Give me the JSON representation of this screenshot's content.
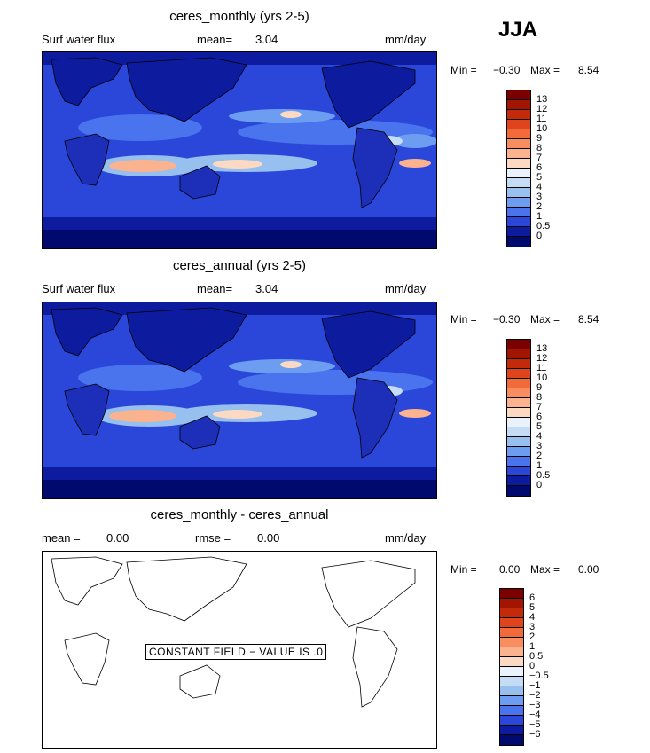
{
  "season": "JJA",
  "panels": [
    {
      "title": "ceres_monthly (yrs 2-5)",
      "left_label": "Surf water flux",
      "stat1_label": "mean=",
      "stat1_value": "3.04",
      "units": "mm/day",
      "min_label": "Min =",
      "min_value": "−0.30",
      "max_label": "Max =",
      "max_value": "8.54",
      "colorbar_ticks": [
        "13",
        "12",
        "11",
        "10",
        "9",
        "8",
        "7",
        "6",
        "5",
        "4",
        "3",
        "2",
        "1",
        "0.5",
        "0"
      ]
    },
    {
      "title": "ceres_annual (yrs 2-5)",
      "left_label": "Surf water flux",
      "stat1_label": "mean=",
      "stat1_value": "3.04",
      "units": "mm/day",
      "min_label": "Min =",
      "min_value": "−0.30",
      "max_label": "Max =",
      "max_value": "8.54",
      "colorbar_ticks": [
        "13",
        "12",
        "11",
        "10",
        "9",
        "8",
        "7",
        "6",
        "5",
        "4",
        "3",
        "2",
        "1",
        "0.5",
        "0"
      ]
    },
    {
      "title": "ceres_monthly - ceres_annual",
      "stat1_label": "mean =",
      "stat1_value": "0.00",
      "stat2_label": "rmse =",
      "stat2_value": "0.00",
      "units": "mm/day",
      "min_label": "Min =",
      "min_value": "0.00",
      "max_label": "Max =",
      "max_value": "0.00",
      "note": "CONSTANT FIELD − VALUE IS .0",
      "colorbar_ticks": [
        "6",
        "5",
        "4",
        "3",
        "2",
        "1",
        "0.5",
        "0",
        "−0.5",
        "−1",
        "−2",
        "−3",
        "−4",
        "−5",
        "−6"
      ]
    }
  ],
  "colors": {
    "abs_scale": [
      "#7a0000",
      "#a21500",
      "#c42a0a",
      "#e0441c",
      "#f06a3a",
      "#f88d60",
      "#fbb28e",
      "#fcd9c2",
      "#eaf2fb",
      "#c4dcf4",
      "#97c0ee",
      "#6c9df0",
      "#4a74ee",
      "#2a47da",
      "#0d1c9e",
      "#000a6e"
    ],
    "diff_scale": [
      "#7a0000",
      "#a21500",
      "#c42a0a",
      "#e0441c",
      "#f06a3a",
      "#f88d60",
      "#fbb28e",
      "#fcd9c2",
      "#eaf2fb",
      "#c4dcf4",
      "#97c0ee",
      "#6c9df0",
      "#4a74ee",
      "#2a47da",
      "#0d1c9e",
      "#000a6e"
    ]
  },
  "chart_data": [
    {
      "type": "heatmap",
      "title": "ceres_monthly (yrs 2-5)",
      "variable": "Surf water flux",
      "units": "mm/day",
      "mean": 3.04,
      "min": -0.3,
      "max": 8.54,
      "levels": [
        0,
        0.5,
        1,
        2,
        3,
        4,
        5,
        6,
        7,
        8,
        9,
        10,
        11,
        12,
        13
      ]
    },
    {
      "type": "heatmap",
      "title": "ceres_annual (yrs 2-5)",
      "variable": "Surf water flux",
      "units": "mm/day",
      "mean": 3.04,
      "min": -0.3,
      "max": 8.54,
      "levels": [
        0,
        0.5,
        1,
        2,
        3,
        4,
        5,
        6,
        7,
        8,
        9,
        10,
        11,
        12,
        13
      ]
    },
    {
      "type": "heatmap",
      "title": "ceres_monthly - ceres_annual",
      "units": "mm/day",
      "mean": 0.0,
      "rmse": 0.0,
      "min": 0.0,
      "max": 0.0,
      "levels": [
        -6,
        -5,
        -4,
        -3,
        -2,
        -1,
        -0.5,
        0,
        0.5,
        1,
        2,
        3,
        4,
        5,
        6
      ]
    }
  ]
}
